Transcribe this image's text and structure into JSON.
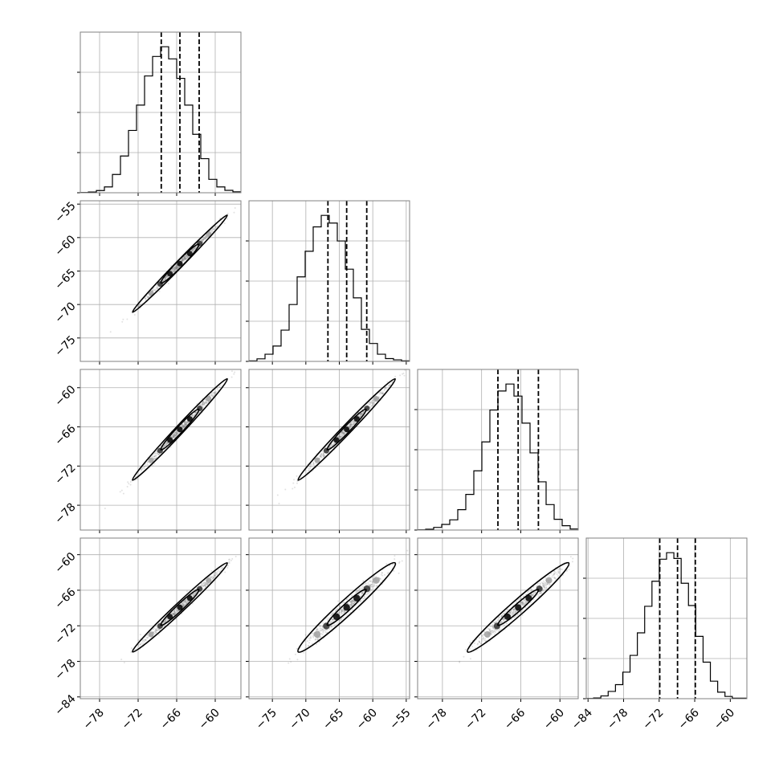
{
  "chart_data": {
    "type": "corner",
    "parameters": 4,
    "grid": true,
    "colors": {
      "histogram": "#000000",
      "quantile_line": "#000000",
      "grid": "#b0b0b0",
      "axes": "#808080",
      "samples": "#7a7a7a",
      "density_dark": "#000000",
      "density_mid": "#333333",
      "density_light": "#a0a0a0"
    },
    "x_ticks": [
      {
        "values": [
          -78,
          -72,
          -66,
          -60
        ],
        "labels": [
          "−78",
          "−72",
          "−66",
          "−60"
        ]
      },
      {
        "values": [
          -75,
          -70,
          -65,
          -60,
          -55
        ],
        "labels": [
          "−75",
          "−70",
          "−65",
          "−60",
          "−55"
        ]
      },
      {
        "values": [
          -78,
          -72,
          -66,
          -60
        ],
        "labels": [
          "−78",
          "−72",
          "−66",
          "−60"
        ]
      },
      {
        "values": [
          -84,
          -78,
          -72,
          -66,
          -60
        ],
        "labels": [
          "−84",
          "−78",
          "−72",
          "−66",
          "−60"
        ]
      }
    ],
    "y_ticks": [
      null,
      {
        "values": [
          -55,
          -60,
          -65,
          -70,
          -75
        ],
        "labels": [
          "−55",
          "−60",
          "−65",
          "−70",
          "−75"
        ]
      },
      {
        "values": [
          -60,
          -66,
          -72,
          -78
        ],
        "labels": [
          "−60",
          "−66",
          "−72",
          "−78"
        ]
      },
      {
        "values": [
          -60,
          -66,
          -72,
          -78,
          -84
        ],
        "labels": [
          "−60",
          "−66",
          "−72",
          "−78",
          "−84"
        ]
      }
    ],
    "ranges": [
      [
        -81,
        -56
      ],
      [
        -78.5,
        -54.5
      ],
      [
        -81.8,
        -57.2
      ],
      [
        -84.3,
        -57.2
      ]
    ],
    "quantiles": [
      [
        -68.4,
        -65.5,
        -62.5
      ],
      [
        -66.7,
        -63.9,
        -60.9
      ],
      [
        -69.5,
        -66.4,
        -63.3
      ],
      [
        -71.9,
        -68.9,
        -65.9
      ]
    ],
    "histograms": [
      {
        "range": [
          -81,
          -56
        ],
        "counts": [
          1,
          3,
          9,
          24,
          75,
          151,
          256,
          360,
          480,
          560,
          600,
          550,
          470,
          360,
          240,
          140,
          55,
          24,
          10,
          4
        ]
      },
      {
        "range": [
          -78.5,
          -54.5
        ],
        "counts": [
          2,
          10,
          28,
          60,
          122,
          222,
          330,
          430,
          525,
          570,
          540,
          470,
          360,
          248,
          125,
          70,
          28,
          11,
          6,
          2
        ]
      },
      {
        "range": [
          -81.8,
          -57.2
        ],
        "counts": [
          1,
          3,
          10,
          21,
          38,
          76,
          133,
          221,
          329,
          448,
          519,
          545,
          500,
          399,
          288,
          180,
          95,
          40,
          16,
          4
        ]
      },
      {
        "range": [
          -84.3,
          -57.2
        ],
        "counts": [
          1,
          3,
          11,
          29,
          56,
          106,
          173,
          263,
          369,
          469,
          557,
          583,
          560,
          461,
          372,
          249,
          146,
          70,
          26,
          9,
          2,
          2
        ]
      }
    ],
    "pairs": [
      {
        "row": 1,
        "col": 0,
        "correlation": 0.995
      },
      {
        "row": 2,
        "col": 0,
        "correlation": 0.993
      },
      {
        "row": 2,
        "col": 1,
        "correlation": 0.992
      },
      {
        "row": 3,
        "col": 0,
        "correlation": 0.99
      },
      {
        "row": 3,
        "col": 1,
        "correlation": 0.975
      },
      {
        "row": 3,
        "col": 2,
        "correlation": 0.978
      }
    ]
  }
}
